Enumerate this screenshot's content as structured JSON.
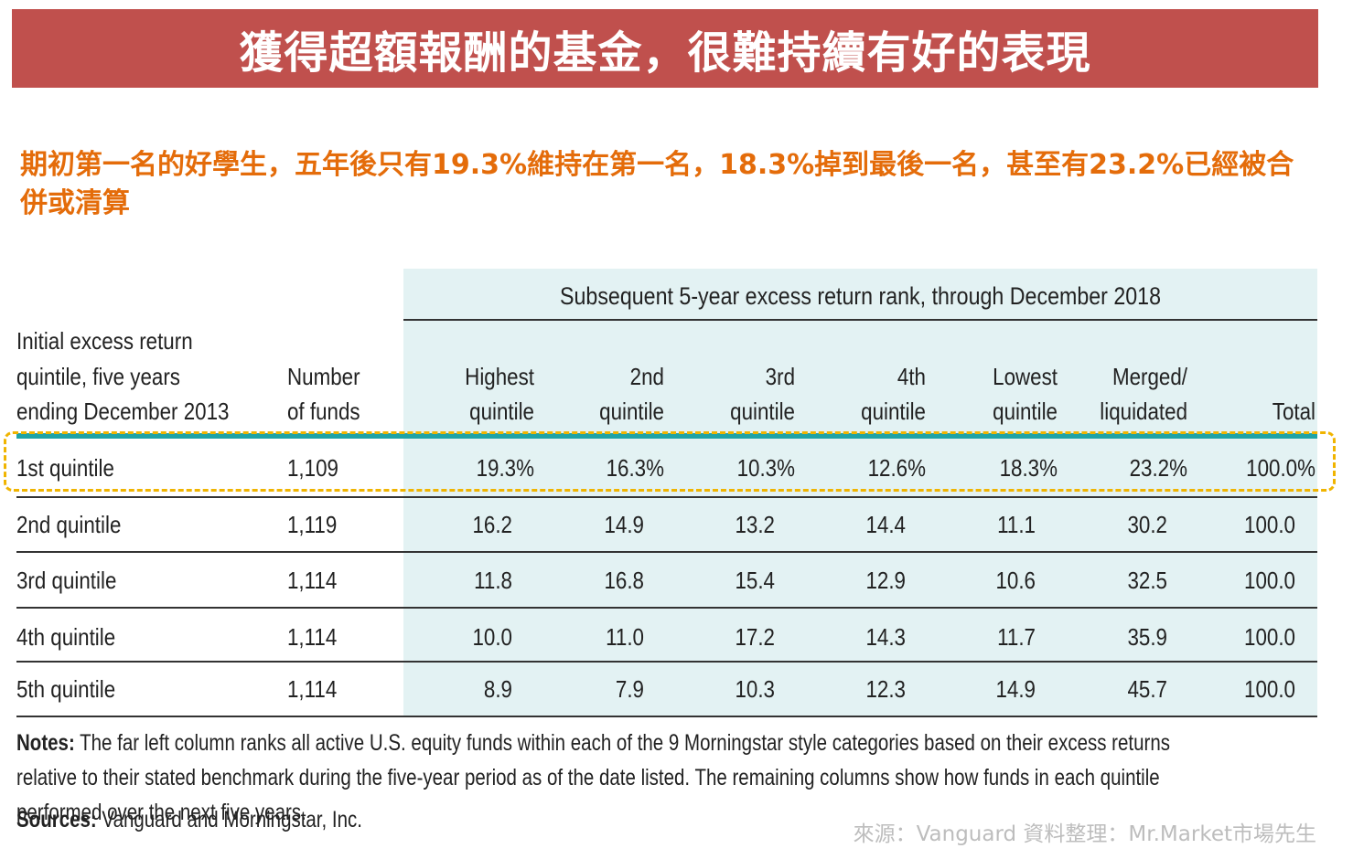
{
  "title": "獲得超額報酬的基金，很難持續有好的表現",
  "subtitle": "期初第一名的好學生，五年後只有19.3%維持在第一名，18.3%掉到最後一名，甚至有23.2%已經被合併或清算",
  "table": {
    "group_header": "Subsequent 5-year excess return rank, through December 2018",
    "col_headers": {
      "initial": [
        "Initial excess return",
        "quintile, five years",
        "ending December 2013"
      ],
      "number": [
        "Number",
        "of funds"
      ],
      "highest": [
        "Highest",
        "quintile"
      ],
      "second": [
        "2nd",
        "quintile"
      ],
      "third": [
        "3rd",
        "quintile"
      ],
      "fourth": [
        "4th",
        "quintile"
      ],
      "lowest": [
        "Lowest",
        "quintile"
      ],
      "merged": [
        "Merged/",
        "liquidated"
      ],
      "total": [
        "Total"
      ]
    },
    "rows": [
      {
        "label": "1st quintile",
        "funds": "1,109",
        "highest": "19.3%",
        "second": "16.3%",
        "third": "10.3%",
        "fourth": "12.6%",
        "lowest": "18.3%",
        "merged": "23.2%",
        "total": "100.0%"
      },
      {
        "label": "2nd quintile",
        "funds": "1,119",
        "highest": "16.2",
        "second": "14.9",
        "third": "13.2",
        "fourth": "14.4",
        "lowest": "11.1",
        "merged": "30.2",
        "total": "100.0"
      },
      {
        "label": "3rd quintile",
        "funds": "1,114",
        "highest": "11.8",
        "second": "16.8",
        "third": "15.4",
        "fourth": "12.9",
        "lowest": "10.6",
        "merged": "32.5",
        "total": "100.0"
      },
      {
        "label": "4th quintile",
        "funds": "1,114",
        "highest": "10.0",
        "second": "11.0",
        "third": "17.2",
        "fourth": "14.3",
        "lowest": "11.7",
        "merged": "35.9",
        "total": "100.0"
      },
      {
        "label": "5th quintile",
        "funds": "1,114",
        "highest": "8.9",
        "second": "7.9",
        "third": "10.3",
        "fourth": "12.3",
        "lowest": "14.9",
        "merged": "45.7",
        "total": "100.0"
      }
    ]
  },
  "notes_label": "Notes:",
  "notes_text": " The far left column ranks all active U.S. equity funds within each of the 9 Morningstar style categories based on their excess returns relative to their stated benchmark during the five-year period as of the date listed. The remaining columns show how funds in each quintile performed over the next five years.",
  "sources_label": "Sources:",
  "sources_text": " Vanguard and Morningstar, Inc.",
  "credit": "來源：Vanguard  資料整理：Mr.Market市場先生",
  "colors": {
    "banner": "#c0504d",
    "subtitle": "#e46c0a",
    "shade": "#e3f2f3",
    "rule_accent": "#1fa3a6",
    "highlight": "#f0b400"
  }
}
